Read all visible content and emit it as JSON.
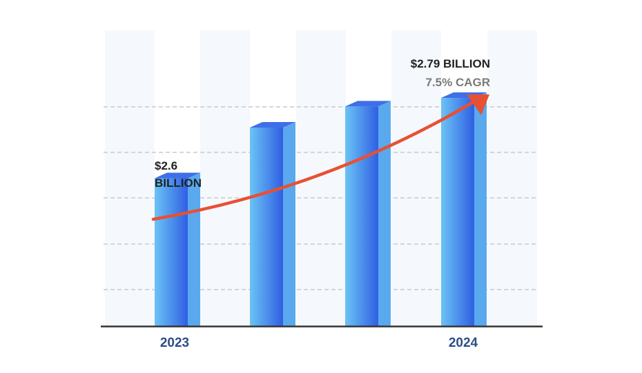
{
  "chart_data": {
    "type": "bar",
    "categories": [
      "2023",
      "",
      "",
      "2024"
    ],
    "values": [
      2.6,
      2.72,
      2.77,
      2.79
    ],
    "ylim": [
      2.25,
      2.95
    ],
    "grid": true,
    "annotations": {
      "start_value": "$2.6",
      "start_unit": "BILLION",
      "end_value": "$2.79 BILLION",
      "end_cagr": "7.5% CAGR"
    },
    "trend_arrow": true
  },
  "colors": {
    "bar_front_light": "#6cc3f5",
    "bar_front_dark": "#2f5fe3",
    "bar_side": "#5aa9ee",
    "bar_top": "#3f6fe8",
    "arrow": "#e85033",
    "stripe": "#f5f8fc",
    "axis": "#333333",
    "grid": "#c9c9c9"
  }
}
